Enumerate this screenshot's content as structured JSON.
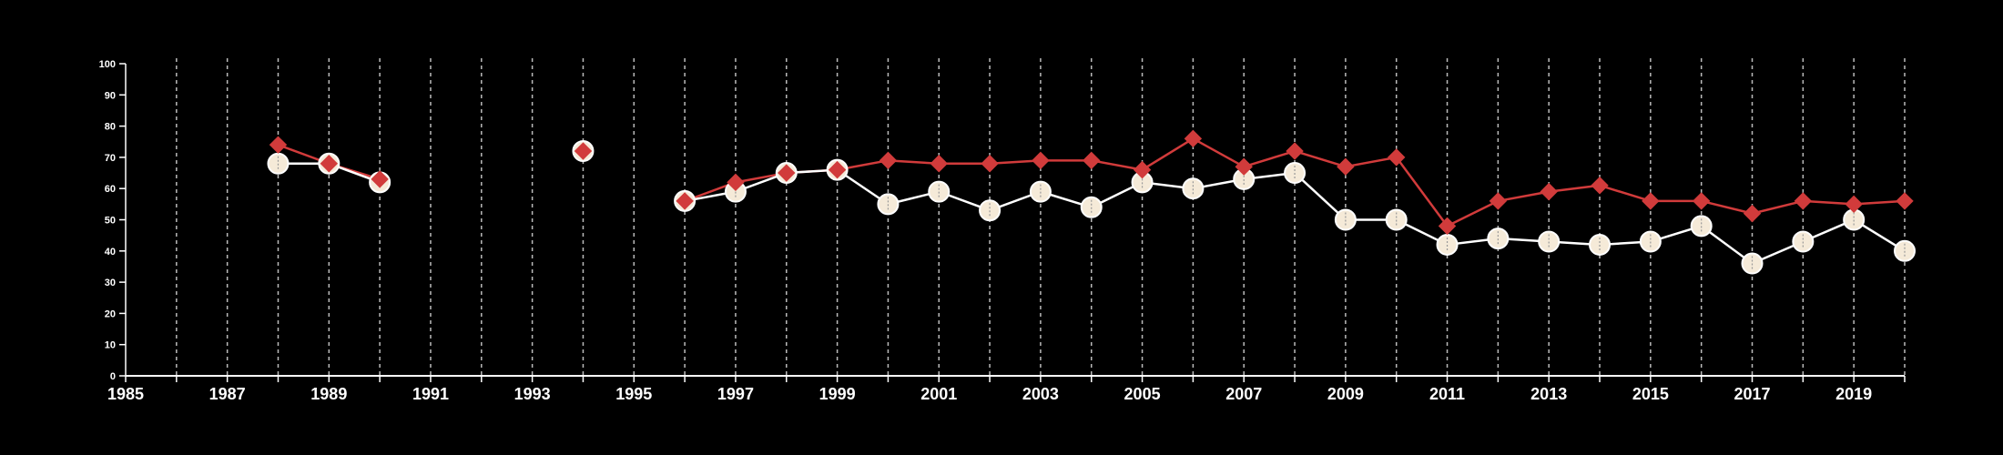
{
  "chart_data": {
    "type": "line",
    "title": "",
    "xlabel": "",
    "ylabel": "",
    "xlim": [
      1985,
      2020
    ],
    "ylim": [
      0,
      100
    ],
    "x_ticks": [
      1985,
      1987,
      1989,
      1991,
      1993,
      1995,
      1997,
      1999,
      2001,
      2003,
      2005,
      2007,
      2009,
      2011,
      2013,
      2015,
      2017,
      2019
    ],
    "y_ticks": [
      0,
      10,
      20,
      30,
      40,
      50,
      60,
      70,
      80,
      90,
      100
    ],
    "vertical_grid": "dashed, one per year",
    "horizontal_grid": false,
    "legend": "none",
    "colors": {
      "background": "#000000",
      "axis": "#ffffff",
      "grid": "#bbbbbb",
      "red_series": "#d13b3b",
      "white_series_line": "#ffffff",
      "white_series_marker": "#f5ead8"
    },
    "series": [
      {
        "marker": "diamond",
        "color": "#d13b3b",
        "points": [
          [
            1988,
            74
          ],
          [
            1989,
            68
          ],
          [
            1990,
            63
          ],
          [
            1994,
            72
          ],
          [
            1996,
            56
          ],
          [
            1997,
            62
          ],
          [
            1998,
            65
          ],
          [
            1999,
            66
          ],
          [
            2000,
            69
          ],
          [
            2001,
            68
          ],
          [
            2002,
            68
          ],
          [
            2003,
            69
          ],
          [
            2004,
            69
          ],
          [
            2005,
            66
          ],
          [
            2006,
            76
          ],
          [
            2007,
            67
          ],
          [
            2008,
            72
          ],
          [
            2009,
            67
          ],
          [
            2010,
            70
          ],
          [
            2011,
            48
          ],
          [
            2012,
            56
          ],
          [
            2013,
            59
          ],
          [
            2014,
            61
          ],
          [
            2015,
            56
          ],
          [
            2016,
            56
          ],
          [
            2017,
            52
          ],
          [
            2018,
            56
          ],
          [
            2019,
            55
          ],
          [
            2020,
            56
          ]
        ]
      },
      {
        "marker": "circle",
        "color": "#ffffff",
        "points": [
          [
            1988,
            68
          ],
          [
            1989,
            68
          ],
          [
            1990,
            62
          ],
          [
            1994,
            72
          ],
          [
            1996,
            56
          ],
          [
            1997,
            59
          ],
          [
            1998,
            65
          ],
          [
            1999,
            66
          ],
          [
            2000,
            55
          ],
          [
            2001,
            59
          ],
          [
            2002,
            53
          ],
          [
            2003,
            59
          ],
          [
            2004,
            54
          ],
          [
            2005,
            62
          ],
          [
            2006,
            60
          ],
          [
            2007,
            63
          ],
          [
            2008,
            65
          ],
          [
            2009,
            50
          ],
          [
            2010,
            50
          ],
          [
            2011,
            42
          ],
          [
            2012,
            44
          ],
          [
            2013,
            43
          ],
          [
            2014,
            42
          ],
          [
            2015,
            43
          ],
          [
            2016,
            48
          ],
          [
            2017,
            36
          ],
          [
            2018,
            43
          ],
          [
            2019,
            50
          ],
          [
            2020,
            40
          ]
        ]
      }
    ]
  }
}
